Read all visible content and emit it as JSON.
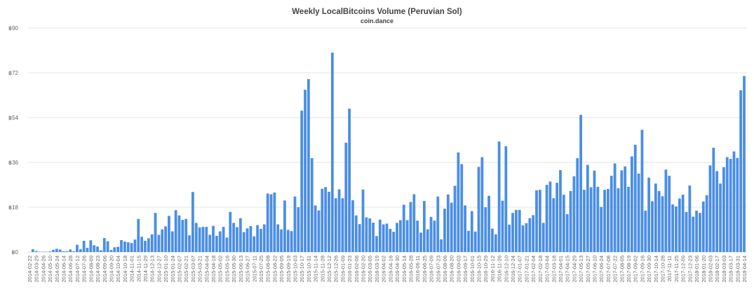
{
  "chart_data": {
    "type": "bar",
    "title": "Weekly LocalBitcoins Volume (Peruvian Sol)",
    "subtitle": "coin.dance",
    "xlabel": "",
    "ylabel": "",
    "ylim": [
      0,
      90
    ],
    "grid": true,
    "y_ticks": [
      0,
      18,
      36,
      54,
      72,
      90
    ],
    "y_tick_labels": [
      "฿0",
      "฿18",
      "฿36",
      "฿54",
      "฿72",
      "฿90"
    ],
    "bar_color": "#4a8ee6",
    "x_tick_labels": [
      "2014-02-22",
      "2014-03-29",
      "2014-04-26",
      "2014-05-10",
      "2014-05-24",
      "2014-06-14",
      "2014-06-28",
      "2014-07-12",
      "2014-07-26",
      "2014-08-09",
      "2014-08-23",
      "2014-09-06",
      "2014-09-20",
      "2014-10-04",
      "2014-10-18",
      "2014-11-01",
      "2014-11-15",
      "2014-11-29",
      "2014-12-13",
      "2014-12-27",
      "2015-01-10",
      "2015-01-24",
      "2015-02-07",
      "2015-02-21",
      "2015-03-07",
      "2015-03-21",
      "2015-04-04",
      "2015-04-18",
      "2015-05-02",
      "2015-05-16",
      "2015-05-30",
      "2015-06-13",
      "2015-06-27",
      "2015-07-11",
      "2015-07-25",
      "2015-08-08",
      "2015-08-22",
      "2015-09-05",
      "2015-09-19",
      "2015-10-03",
      "2015-10-17",
      "2015-10-31",
      "2015-11-14",
      "2015-11-28",
      "2015-12-12",
      "2015-12-26",
      "2016-01-09",
      "2016-01-23",
      "2016-02-06",
      "2016-02-20",
      "2016-03-05",
      "2016-03-19",
      "2016-04-02",
      "2016-04-16",
      "2016-04-30",
      "2016-05-14",
      "2016-05-28",
      "2016-06-11",
      "2016-06-25",
      "2016-07-09",
      "2016-07-23",
      "2016-08-06",
      "2016-08-20",
      "2016-09-03",
      "2016-09-17",
      "2016-10-01",
      "2016-10-15",
      "2016-10-29",
      "2016-11-12",
      "2016-11-26",
      "2016-12-10",
      "2016-12-24",
      "2017-01-07",
      "2017-01-21",
      "2017-02-04",
      "2017-02-18",
      "2017-03-04",
      "2017-03-18",
      "2017-04-01",
      "2017-04-15",
      "2017-04-29",
      "2017-05-13",
      "2017-05-27",
      "2017-06-10",
      "2017-06-24",
      "2017-07-08",
      "2017-07-22",
      "2017-08-05",
      "2017-08-19",
      "2017-09-02",
      "2017-09-16",
      "2017-09-30",
      "2017-10-14",
      "2017-10-28",
      "2017-11-11",
      "2017-11-25",
      "2017-12-09",
      "2017-12-23",
      "2018-01-06",
      "2018-01-20",
      "2018-02-03",
      "2018-02-17",
      "2018-03-03",
      "2018-03-17",
      "2018-03-31",
      "2018-04-14"
    ],
    "label_every_n_bars": 2,
    "values": [
      0,
      1.1,
      0.4,
      0.1,
      0.1,
      0.1,
      0.2,
      0.9,
      1.3,
      1.0,
      0.3,
      0.3,
      1.0,
      0.3,
      2.9,
      1.1,
      4.5,
      1.7,
      4.7,
      2.7,
      2.2,
      0.7,
      5.6,
      4.3,
      0.8,
      1.9,
      2.1,
      4.8,
      4.2,
      3.9,
      3.6,
      5.0,
      13.3,
      6.1,
      4.5,
      5.5,
      7.1,
      15.7,
      6.9,
      9.1,
      10.3,
      14.5,
      8.3,
      16.8,
      14.7,
      12.9,
      13.3,
      6.7,
      24.1,
      11.7,
      9.9,
      10.1,
      10.1,
      6.9,
      10.5,
      6.5,
      8.3,
      10.1,
      5.8,
      16.1,
      11.7,
      10.0,
      13.6,
      8.0,
      9.5,
      10.4,
      6.3,
      10.8,
      9.3,
      11.1,
      23.5,
      23.2,
      23.9,
      11.1,
      9.1,
      20.7,
      8.9,
      8.4,
      22.3,
      18.0,
      56.8,
      65.2,
      69.5,
      37.7,
      18.7,
      16.7,
      25.4,
      26.1,
      24.2,
      80.1,
      21.6,
      25.2,
      21.6,
      43.9,
      57.6,
      20.8,
      14.7,
      11.2,
      25.1,
      13.9,
      13.5,
      11.8,
      6.4,
      13.0,
      11.1,
      11.4,
      9.3,
      8.1,
      11.7,
      12.8,
      19.0,
      12.8,
      20.1,
      23.2,
      12.6,
      7.8,
      20.5,
      9.1,
      14.1,
      12.6,
      22.3,
      5.1,
      17.4,
      23.1,
      19.8,
      26.6,
      40.0,
      35.3,
      18.7,
      8.5,
      16.4,
      8.2,
      34.2,
      38.1,
      18.0,
      22.6,
      9.4,
      7.1,
      44.4,
      20.6,
      42.5,
      11.0,
      15.7,
      16.9,
      16.9,
      10.7,
      11.6,
      13.6,
      14.8,
      24.8,
      25.0,
      11.7,
      27.0,
      28.3,
      21.6,
      27.8,
      32.9,
      23.0,
      15.2,
      24.5,
      30.4,
      37.7,
      55.1,
      25.0,
      35.0,
      26.0,
      32.7,
      26.2,
      18.1,
      25.0,
      25.3,
      30.6,
      35.6,
      25.6,
      32.8,
      34.4,
      26.2,
      38.4,
      43.1,
      31.5,
      49.1,
      16.6,
      29.9,
      20.4,
      27.5,
      24.5,
      22.4,
      33.1,
      30.6,
      19.1,
      18.3,
      21.5,
      23.0,
      16.1,
      26.7,
      14.2,
      16.6,
      15.7,
      20.3,
      22.8,
      34.8,
      41.9,
      32.5,
      27.5,
      34.1,
      38.1,
      37.4,
      40.4,
      37.8,
      65.0,
      70.7
    ]
  }
}
